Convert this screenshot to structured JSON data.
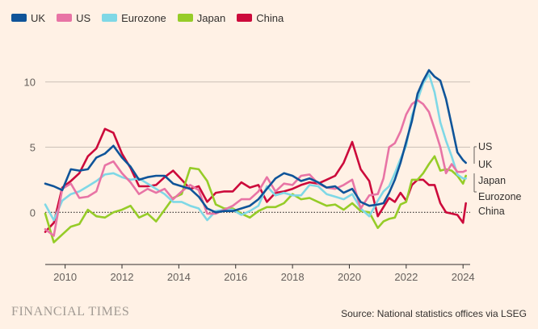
{
  "chart_data": {
    "type": "line",
    "title": "",
    "xlabel": "",
    "ylabel": "",
    "xlim": [
      2009.3,
      2024.25
    ],
    "ylim": [
      -4.0,
      13.5
    ],
    "y_ticks": [
      0,
      5,
      10
    ],
    "y_tick_labels": [
      "0",
      "5",
      "10"
    ],
    "x_ticks": [
      2010,
      2012,
      2014,
      2016,
      2018,
      2020,
      2022,
      2024
    ],
    "x_tick_labels": [
      "2010",
      "2012",
      "2014",
      "2016",
      "2018",
      "2020",
      "2022",
      "2024"
    ],
    "grid": "horizontal",
    "zero_line": "dotted",
    "legend": "top-left",
    "series": [
      {
        "name": "UK",
        "color": "#0f5499",
        "x": [
          2009.3,
          2009.6,
          2009.9,
          2010.2,
          2010.5,
          2010.8,
          2011.1,
          2011.4,
          2011.7,
          2012.0,
          2012.3,
          2012.6,
          2012.9,
          2013.2,
          2013.5,
          2013.8,
          2014.1,
          2014.4,
          2014.7,
          2015.0,
          2015.3,
          2015.6,
          2015.9,
          2016.2,
          2016.5,
          2016.8,
          2017.1,
          2017.4,
          2017.7,
          2018.0,
          2018.3,
          2018.6,
          2018.9,
          2019.2,
          2019.5,
          2019.8,
          2020.1,
          2020.4,
          2020.7,
          2021.0,
          2021.2,
          2021.4,
          2021.6,
          2021.8,
          2022.0,
          2022.2,
          2022.4,
          2022.6,
          2022.8,
          2023.0,
          2023.2,
          2023.4,
          2023.6,
          2023.8,
          2024.0,
          2024.1
        ],
        "y": [
          2.2,
          2.0,
          1.7,
          3.3,
          3.2,
          3.3,
          4.2,
          4.5,
          5.1,
          4.2,
          3.5,
          2.5,
          2.7,
          2.8,
          2.8,
          2.2,
          2.0,
          1.8,
          1.2,
          0.3,
          0.0,
          0.1,
          0.1,
          0.3,
          0.5,
          1.0,
          1.8,
          2.6,
          3.0,
          2.8,
          2.4,
          2.6,
          2.3,
          1.9,
          2.0,
          1.5,
          1.8,
          0.8,
          0.5,
          0.6,
          0.7,
          1.5,
          2.5,
          3.8,
          5.4,
          7.0,
          9.1,
          10.1,
          10.9,
          10.4,
          10.1,
          8.7,
          6.7,
          4.6,
          4.0,
          3.8
        ]
      },
      {
        "name": "US",
        "color": "#e874a5",
        "x": [
          2009.3,
          2009.6,
          2009.9,
          2010.2,
          2010.5,
          2010.8,
          2011.1,
          2011.4,
          2011.7,
          2012.0,
          2012.3,
          2012.6,
          2012.9,
          2013.2,
          2013.5,
          2013.8,
          2014.1,
          2014.4,
          2014.7,
          2015.0,
          2015.3,
          2015.6,
          2015.9,
          2016.2,
          2016.5,
          2016.8,
          2017.1,
          2017.4,
          2017.7,
          2018.0,
          2018.3,
          2018.6,
          2018.9,
          2019.2,
          2019.5,
          2019.8,
          2020.1,
          2020.4,
          2020.7,
          2021.0,
          2021.2,
          2021.4,
          2021.6,
          2021.8,
          2022.0,
          2022.2,
          2022.4,
          2022.6,
          2022.8,
          2023.0,
          2023.2,
          2023.4,
          2023.6,
          2023.8,
          2024.0,
          2024.1
        ],
        "y": [
          -1.3,
          -1.8,
          1.8,
          2.2,
          1.1,
          1.2,
          1.6,
          3.6,
          3.9,
          3.0,
          2.3,
          1.4,
          1.8,
          1.5,
          1.8,
          1.0,
          1.6,
          2.1,
          1.7,
          -0.1,
          -0.1,
          0.2,
          0.5,
          1.0,
          1.0,
          1.6,
          2.7,
          1.6,
          2.2,
          2.1,
          2.8,
          2.9,
          2.2,
          1.9,
          1.8,
          2.1,
          2.5,
          0.3,
          1.3,
          1.4,
          2.6,
          5.0,
          5.3,
          6.2,
          7.5,
          8.3,
          8.6,
          8.3,
          7.7,
          6.4,
          5.0,
          3.0,
          3.7,
          3.1,
          3.1,
          3.2
        ]
      },
      {
        "name": "Eurozone",
        "color": "#7fd8e6",
        "x": [
          2009.3,
          2009.6,
          2009.9,
          2010.2,
          2010.5,
          2010.8,
          2011.1,
          2011.4,
          2011.7,
          2012.0,
          2012.3,
          2012.6,
          2012.9,
          2013.2,
          2013.5,
          2013.8,
          2014.1,
          2014.4,
          2014.7,
          2015.0,
          2015.3,
          2015.6,
          2015.9,
          2016.2,
          2016.5,
          2016.8,
          2017.1,
          2017.4,
          2017.7,
          2018.0,
          2018.3,
          2018.6,
          2018.9,
          2019.2,
          2019.5,
          2019.8,
          2020.1,
          2020.4,
          2020.7,
          2021.0,
          2021.2,
          2021.4,
          2021.6,
          2021.8,
          2022.0,
          2022.2,
          2022.4,
          2022.6,
          2022.8,
          2023.0,
          2023.2,
          2023.4,
          2023.6,
          2023.8,
          2024.0,
          2024.1
        ],
        "y": [
          0.6,
          -0.6,
          0.9,
          1.4,
          1.6,
          2.0,
          2.4,
          2.9,
          3.0,
          2.7,
          2.5,
          2.6,
          2.2,
          1.8,
          1.4,
          0.8,
          0.8,
          0.5,
          0.3,
          -0.6,
          0.1,
          0.2,
          0.2,
          -0.2,
          0.1,
          0.5,
          2.0,
          1.3,
          1.5,
          1.3,
          1.3,
          2.1,
          2.0,
          1.4,
          1.2,
          1.0,
          1.4,
          0.3,
          -0.3,
          0.9,
          1.6,
          2.0,
          3.0,
          4.1,
          5.1,
          7.4,
          8.6,
          9.9,
          10.6,
          9.2,
          6.9,
          5.5,
          4.3,
          2.9,
          2.6,
          2.6
        ]
      },
      {
        "name": "Japan",
        "color": "#96cc28",
        "x": [
          2009.3,
          2009.6,
          2009.9,
          2010.2,
          2010.5,
          2010.8,
          2011.1,
          2011.4,
          2011.7,
          2012.0,
          2012.3,
          2012.6,
          2012.9,
          2013.2,
          2013.5,
          2013.8,
          2014.1,
          2014.4,
          2014.7,
          2015.0,
          2015.3,
          2015.6,
          2015.9,
          2016.2,
          2016.5,
          2016.8,
          2017.1,
          2017.4,
          2017.7,
          2018.0,
          2018.3,
          2018.6,
          2018.9,
          2019.2,
          2019.5,
          2019.8,
          2020.1,
          2020.4,
          2020.7,
          2021.0,
          2021.2,
          2021.4,
          2021.6,
          2021.8,
          2022.0,
          2022.2,
          2022.4,
          2022.6,
          2022.8,
          2023.0,
          2023.2,
          2023.4,
          2023.6,
          2023.8,
          2024.0,
          2024.1
        ],
        "y": [
          -0.1,
          -2.3,
          -1.7,
          -1.1,
          -0.9,
          0.2,
          -0.3,
          -0.4,
          0.0,
          0.2,
          0.5,
          -0.4,
          -0.1,
          -0.7,
          0.2,
          1.1,
          1.4,
          3.4,
          3.3,
          2.4,
          0.6,
          0.3,
          0.3,
          -0.1,
          -0.4,
          0.1,
          0.4,
          0.4,
          0.7,
          1.4,
          1.0,
          1.1,
          0.8,
          0.5,
          0.6,
          0.2,
          0.7,
          0.1,
          0.0,
          -1.2,
          -0.7,
          -0.5,
          -0.4,
          0.6,
          0.8,
          2.5,
          2.5,
          3.0,
          3.7,
          4.3,
          3.2,
          3.3,
          3.2,
          2.8,
          2.2,
          2.8
        ]
      },
      {
        "name": "China",
        "color": "#cc0a3b",
        "x": [
          2009.3,
          2009.6,
          2009.9,
          2010.2,
          2010.5,
          2010.8,
          2011.1,
          2011.4,
          2011.7,
          2012.0,
          2012.3,
          2012.6,
          2012.9,
          2013.2,
          2013.5,
          2013.8,
          2014.1,
          2014.4,
          2014.7,
          2015.0,
          2015.3,
          2015.6,
          2015.9,
          2016.2,
          2016.5,
          2016.8,
          2017.1,
          2017.4,
          2017.7,
          2018.0,
          2018.3,
          2018.6,
          2018.9,
          2019.2,
          2019.5,
          2019.8,
          2020.1,
          2020.4,
          2020.7,
          2021.0,
          2021.2,
          2021.4,
          2021.6,
          2021.8,
          2022.0,
          2022.2,
          2022.4,
          2022.6,
          2022.8,
          2023.0,
          2023.2,
          2023.4,
          2023.6,
          2023.8,
          2024.0,
          2024.1
        ],
        "y": [
          -1.5,
          -0.8,
          1.9,
          2.4,
          3.0,
          4.3,
          4.9,
          6.4,
          6.1,
          4.5,
          3.4,
          2.0,
          2.0,
          2.1,
          2.7,
          3.2,
          2.5,
          1.8,
          2.0,
          0.8,
          1.5,
          1.6,
          1.6,
          2.3,
          1.9,
          2.1,
          0.8,
          1.5,
          1.6,
          1.8,
          2.1,
          2.3,
          2.2,
          2.5,
          2.8,
          3.8,
          5.4,
          3.3,
          2.4,
          -0.3,
          0.4,
          1.1,
          0.8,
          1.5,
          0.9,
          2.1,
          2.5,
          2.5,
          2.1,
          2.1,
          0.7,
          0.0,
          -0.1,
          -0.2,
          -0.8,
          0.7
        ]
      }
    ],
    "end_labels": [
      "US",
      "UK",
      "Japan",
      "Eurozone",
      "China"
    ]
  },
  "legend_items": [
    {
      "label": "UK",
      "color": "#0f5499"
    },
    {
      "label": "US",
      "color": "#e874a5"
    },
    {
      "label": "Eurozone",
      "color": "#7fd8e6"
    },
    {
      "label": "Japan",
      "color": "#96cc28"
    },
    {
      "label": "China",
      "color": "#cc0a3b"
    }
  ],
  "brand": "FINANCIAL TIMES",
  "source": "Source: National statistics offices via LSEG"
}
